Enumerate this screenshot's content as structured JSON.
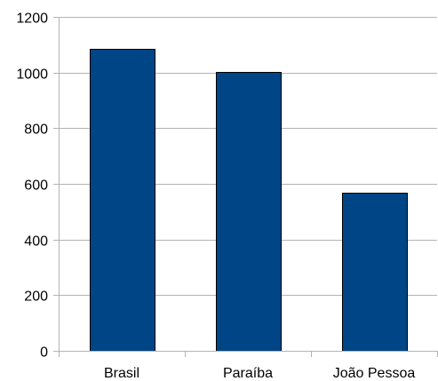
{
  "chart_data": {
    "type": "bar",
    "title": "",
    "xlabel": "",
    "ylabel": "",
    "categories": [
      "Brasil",
      "Paraíba",
      "João Pessoa"
    ],
    "values": [
      1085,
      1003,
      568
    ],
    "ylim": [
      0,
      1200
    ],
    "yticks": [
      0,
      200,
      400,
      600,
      800,
      1000,
      1200
    ],
    "ytick_labels": [
      "0",
      "200",
      "400",
      "600",
      "800",
      "1000",
      "1200"
    ],
    "grid": true,
    "legend": "none",
    "bar_color": "#004586"
  }
}
